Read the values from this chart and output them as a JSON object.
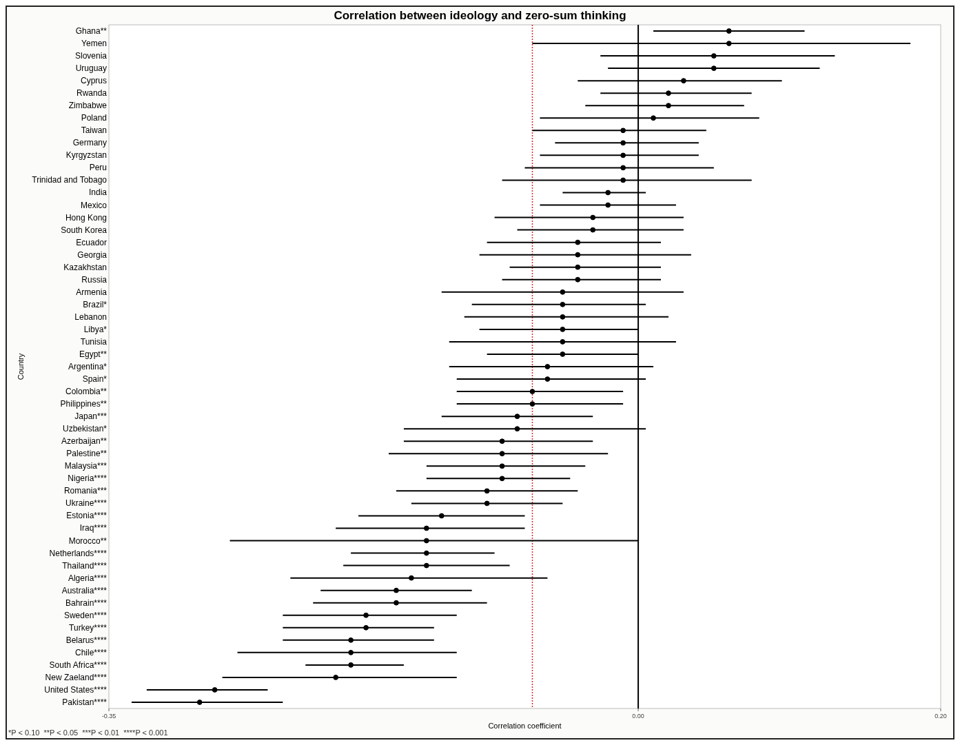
{
  "chart_data": {
    "type": "scatter",
    "orientation": "horizontal",
    "title": "Correlation between ideology and zero-sum thinking",
    "xlabel": "Correlation coefficient",
    "ylabel": "Country",
    "categories": [
      "Ghana**",
      "Yemen",
      "Slovenia",
      "Uruguay",
      "Cyprus",
      "Rwanda",
      "Zimbabwe",
      "Poland",
      "Taiwan",
      "Germany",
      "Kyrgyzstan",
      "Peru",
      "Trinidad and Tobago",
      "India",
      "Mexico",
      "Hong Kong",
      "South Korea",
      "Ecuador",
      "Georgia",
      "Kazakhstan",
      "Russia",
      "Armenia",
      "Brazil*",
      "Lebanon",
      "Libya*",
      "Tunisia",
      "Egypt**",
      "Argentina*",
      "Spain*",
      "Colombia**",
      "Philippines**",
      "Japan***",
      "Uzbekistan*",
      "Azerbaijan**",
      "Palestine**",
      "Malaysia***",
      "Nigeria****",
      "Romania***",
      "Ukraine****",
      "Estonia****",
      "Iraq****",
      "Morocco**",
      "Netherlands****",
      "Thailand****",
      "Algeria****",
      "Australia****",
      "Bahrain****",
      "Sweden****",
      "Turkey****",
      "Belarus****",
      "Chile****",
      "South Africa****",
      "New Zaeland****",
      "United States****",
      "Pakistan****"
    ],
    "series": [
      {
        "color": "#000000",
        "values": [
          0.06,
          0.06,
          0.05,
          0.05,
          0.03,
          0.02,
          0.02,
          0.01,
          -0.01,
          -0.01,
          -0.01,
          -0.01,
          -0.01,
          -0.02,
          -0.02,
          -0.03,
          -0.03,
          -0.04,
          -0.04,
          -0.04,
          -0.04,
          -0.05,
          -0.05,
          -0.05,
          -0.05,
          -0.05,
          -0.05,
          -0.06,
          -0.06,
          -0.07,
          -0.07,
          -0.08,
          -0.08,
          -0.09,
          -0.09,
          -0.09,
          -0.09,
          -0.1,
          -0.1,
          -0.13,
          -0.14,
          -0.14,
          -0.14,
          -0.14,
          -0.15,
          -0.16,
          -0.16,
          -0.18,
          -0.18,
          -0.19,
          -0.19,
          -0.19,
          -0.2,
          -0.28,
          -0.29
        ],
        "errors": [
          [
            0.01,
            0.11
          ],
          [
            -0.07,
            0.18
          ],
          [
            -0.025,
            0.13
          ],
          [
            -0.02,
            0.12
          ],
          [
            -0.04,
            0.095
          ],
          [
            -0.025,
            0.075
          ],
          [
            -0.035,
            0.07
          ],
          [
            -0.065,
            0.08
          ],
          [
            -0.07,
            0.045
          ],
          [
            -0.055,
            0.04
          ],
          [
            -0.065,
            0.04
          ],
          [
            -0.075,
            0.05
          ],
          [
            -0.09,
            0.075
          ],
          [
            -0.05,
            0.005
          ],
          [
            -0.065,
            0.025
          ],
          [
            -0.095,
            0.03
          ],
          [
            -0.08,
            0.03
          ],
          [
            -0.1,
            0.015
          ],
          [
            -0.105,
            0.035
          ],
          [
            -0.085,
            0.015
          ],
          [
            -0.09,
            0.015
          ],
          [
            -0.13,
            0.03
          ],
          [
            -0.11,
            0.005
          ],
          [
            -0.115,
            0.02
          ],
          [
            -0.105,
            0
          ],
          [
            -0.125,
            0.025
          ],
          [
            -0.1,
            0
          ],
          [
            -0.125,
            0.01
          ],
          [
            -0.12,
            0.005
          ],
          [
            -0.12,
            -0.01
          ],
          [
            -0.12,
            -0.01
          ],
          [
            -0.13,
            -0.03
          ],
          [
            -0.155,
            0.005
          ],
          [
            -0.155,
            -0.03
          ],
          [
            -0.165,
            -0.02
          ],
          [
            -0.14,
            -0.035
          ],
          [
            -0.14,
            -0.045
          ],
          [
            -0.16,
            -0.04
          ],
          [
            -0.15,
            -0.05
          ],
          [
            -0.185,
            -0.075
          ],
          [
            -0.2,
            -0.075
          ],
          [
            -0.27,
            0
          ],
          [
            -0.19,
            -0.095
          ],
          [
            -0.195,
            -0.085
          ],
          [
            -0.23,
            -0.06
          ],
          [
            -0.21,
            -0.11
          ],
          [
            -0.215,
            -0.1
          ],
          [
            -0.235,
            -0.12
          ],
          [
            -0.235,
            -0.135
          ],
          [
            -0.235,
            -0.135
          ],
          [
            -0.265,
            -0.12
          ],
          [
            -0.22,
            -0.155
          ],
          [
            -0.275,
            -0.12
          ],
          [
            -0.325,
            -0.245
          ],
          [
            -0.335,
            -0.235
          ]
        ]
      }
    ],
    "xlim": [
      -0.35,
      0.2
    ],
    "xticks": [
      -0.35,
      {
        "value": 0,
        "label": "0.00"
      },
      {
        "value": 0.2,
        "label": "0.20"
      }
    ],
    "marker": "circle",
    "grid": false,
    "ref_lines": [
      {
        "axis": "x",
        "value": 0,
        "label": null,
        "color": "#000000",
        "line_style": "solid"
      },
      {
        "axis": "x",
        "value": -0.07,
        "label": null,
        "color": "#d62728",
        "line_style": "dotted"
      }
    ],
    "annotations": [
      "*P < 0.10  **P < 0.05  ***P < 0.01  ****P < 0.001"
    ]
  }
}
